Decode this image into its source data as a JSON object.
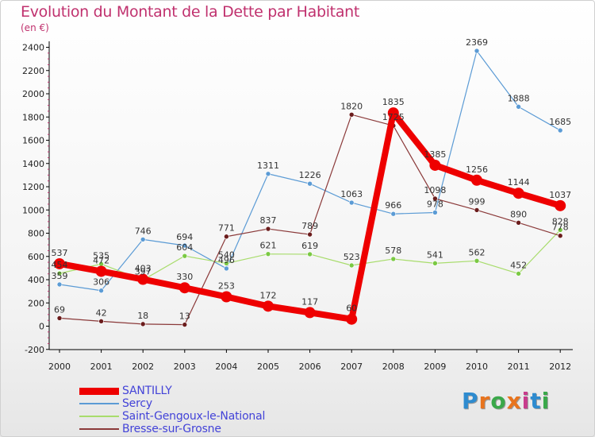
{
  "header": {
    "title": "Evolution du Montant de la Dette par Habitant",
    "unit": "(en €)"
  },
  "logo": {
    "text": "Proxiti",
    "colors": [
      "#2e8bcf",
      "#e8741e",
      "#3aa84a",
      "#e8741e",
      "#c83c8c",
      "#2e8bcf",
      "#3aa84a"
    ]
  },
  "chart_data": {
    "type": "line",
    "x": [
      "2000",
      "2001",
      "2002",
      "2003",
      "2004",
      "2005",
      "2006",
      "2007",
      "2008",
      "2009",
      "2010",
      "2011",
      "2012"
    ],
    "ylim": [
      -200,
      2400
    ],
    "yticks": [
      "-200",
      "0",
      "200",
      "400",
      "600",
      "800",
      "1000",
      "1200",
      "1400",
      "1600",
      "1800",
      "2000",
      "2200",
      "2400"
    ],
    "grid": false,
    "legend": "bottom-left",
    "series": [
      {
        "name": "Sercy",
        "color": "#5b9bd5",
        "marker": "#5b9bd5",
        "values": [
          359,
          306,
          746,
          694,
          496,
          1311,
          1226,
          1063,
          966,
          978,
          2369,
          1888,
          1685
        ],
        "labels": [
          "359",
          "306",
          "746",
          "694",
          "496",
          "1311",
          "1226",
          "1063",
          "966",
          "978",
          "2369",
          "1888",
          "1685"
        ]
      },
      {
        "name": "Saint-Gengoux-le-National",
        "color": "#a8dc6c",
        "marker": "#7ac943",
        "values": [
          454,
          535,
          397,
          604,
          540,
          621,
          619,
          523,
          578,
          541,
          562,
          452,
          828
        ],
        "labels": [
          "454",
          "535",
          "397",
          "604",
          "540",
          "621",
          "619",
          "523",
          "578",
          "541",
          "562",
          "452",
          "828"
        ]
      },
      {
        "name": "Bresse-sur-Grosne",
        "color": "#8b3a3a",
        "marker": "#6b1c1c",
        "values": [
          69,
          42,
          18,
          13,
          771,
          837,
          789,
          1820,
          1725,
          1098,
          999,
          890,
          778
        ],
        "labels": [
          "69",
          "42",
          "18",
          "13",
          "771",
          "837",
          "789",
          "1820",
          "1725",
          "1098",
          "999",
          "890",
          "778"
        ]
      },
      {
        "name": "SANTILLY",
        "color": "#ee0000",
        "marker": "#ee0000",
        "values": [
          537,
          472,
          403,
          330,
          253,
          172,
          117,
          60,
          1835,
          1385,
          1256,
          1144,
          1037
        ],
        "labels": [
          "537",
          "472",
          "403",
          "330",
          "253",
          "172",
          "117",
          "60",
          "1835",
          "1385",
          "1256",
          "1144",
          "1037"
        ]
      }
    ],
    "legend_order": [
      "SANTILLY",
      "Sercy",
      "Saint-Gengoux-le-National",
      "Bresse-sur-Grosne"
    ]
  }
}
